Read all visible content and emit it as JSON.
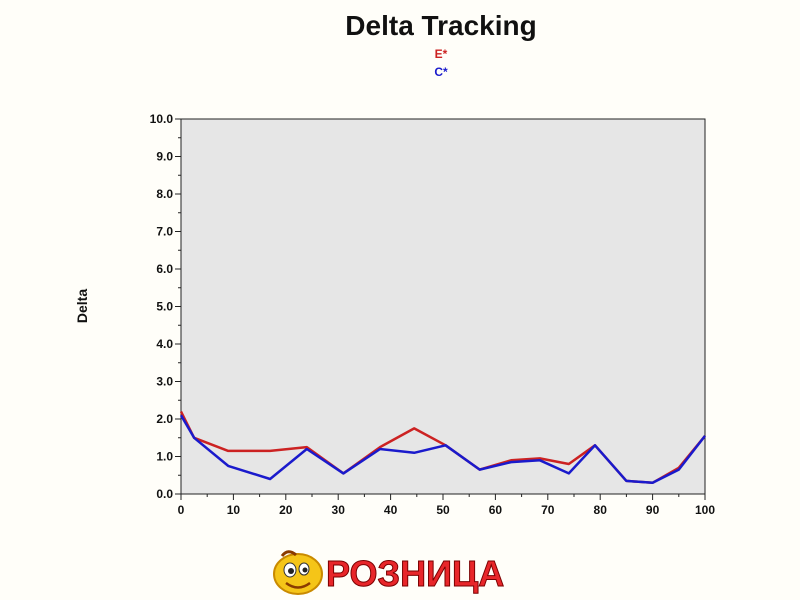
{
  "chart_data": {
    "type": "line",
    "title": "Delta Tracking",
    "ylabel": "Delta",
    "xlabel": "",
    "xlim": [
      0,
      100
    ],
    "ylim": [
      0,
      10
    ],
    "x_ticks": [
      "0",
      "10",
      "20",
      "30",
      "40",
      "50",
      "60",
      "70",
      "80",
      "90",
      "100"
    ],
    "y_ticks": [
      "0.0",
      "1.0",
      "2.0",
      "3.0",
      "4.0",
      "5.0",
      "6.0",
      "7.0",
      "8.0",
      "9.0",
      "10.0"
    ],
    "legend_position": "top-center",
    "grid": false,
    "plot_background": "#e6e6e6",
    "series": [
      {
        "name": "E*",
        "color": "#cc2222",
        "x": [
          0,
          2.5,
          9,
          17,
          24,
          31,
          38,
          44.5,
          50.5,
          57,
          63,
          68.5,
          74,
          79,
          85,
          90,
          95,
          100
        ],
        "y": [
          2.2,
          1.5,
          1.15,
          1.15,
          1.25,
          0.55,
          1.25,
          1.75,
          1.3,
          0.65,
          0.9,
          0.95,
          0.8,
          1.3,
          0.35,
          0.3,
          0.7,
          1.55
        ]
      },
      {
        "name": "C*",
        "color": "#1a1acc",
        "x": [
          0,
          2.5,
          9,
          17,
          24,
          31,
          38,
          44.5,
          50.5,
          57,
          63,
          68.5,
          74,
          79,
          85,
          90,
          95,
          100
        ],
        "y": [
          2.1,
          1.5,
          0.75,
          0.4,
          1.2,
          0.55,
          1.2,
          1.1,
          1.3,
          0.65,
          0.85,
          0.9,
          0.55,
          1.3,
          0.35,
          0.3,
          0.65,
          1.55
        ]
      }
    ]
  },
  "logo": {
    "text": "РОЗНИЦА",
    "text_color": "#e8262a",
    "mascot_color": "#f5c518"
  }
}
